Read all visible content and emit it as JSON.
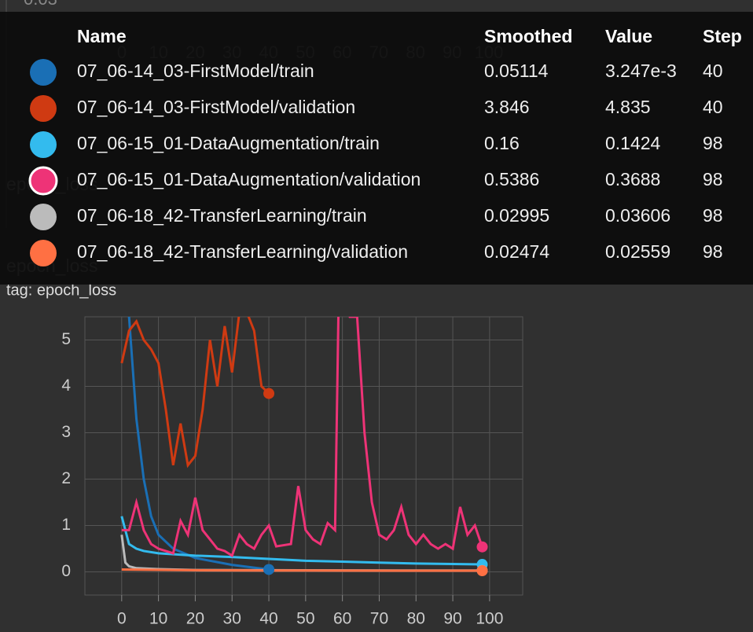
{
  "background": {
    "prev_chart_ytick": "0.03",
    "prev_chart_xticks": [
      0,
      10,
      20,
      30,
      40,
      50,
      60,
      70,
      80,
      90,
      100
    ],
    "card_title": "epoch_loss"
  },
  "card": {
    "title": "epoch_loss",
    "tag": "tag: epoch_loss"
  },
  "chart_data": {
    "type": "line",
    "xlim": [
      -10,
      109
    ],
    "ylim": [
      -0.5,
      5.5
    ],
    "xticks": [
      0,
      10,
      20,
      30,
      40,
      50,
      60,
      70,
      80,
      90,
      100
    ],
    "yticks": [
      0,
      1,
      2,
      3,
      4,
      5
    ],
    "grid": true,
    "series": [
      {
        "name": "07_06-14_03-FirstModel/train",
        "color": "#1a6fb5",
        "x": [
          0,
          2,
          4,
          6,
          8,
          10,
          14,
          20,
          30,
          40
        ],
        "values": [
          6,
          5.5,
          3.3,
          2.0,
          1.2,
          0.8,
          0.5,
          0.3,
          0.15,
          0.05114
        ]
      },
      {
        "name": "07_06-14_03-FirstModel/validation",
        "color": "#cf3a12",
        "x": [
          0,
          2,
          4,
          6,
          8,
          10,
          12,
          14,
          16,
          18,
          20,
          22,
          24,
          26,
          28,
          30,
          32,
          34,
          36,
          38,
          40
        ],
        "values": [
          4.5,
          5.2,
          5.4,
          5,
          4.8,
          4.5,
          3.5,
          2.3,
          3.2,
          2.3,
          2.5,
          3.5,
          5,
          4,
          5.3,
          4.3,
          5.6,
          5.6,
          5.2,
          4,
          3.846
        ]
      },
      {
        "name": "07_06-15_01-DataAugmentation/train",
        "color": "#33bbee",
        "x": [
          0,
          2,
          4,
          6,
          10,
          20,
          30,
          40,
          50,
          60,
          70,
          80,
          90,
          98
        ],
        "values": [
          1.2,
          0.6,
          0.5,
          0.45,
          0.4,
          0.35,
          0.32,
          0.28,
          0.24,
          0.22,
          0.2,
          0.18,
          0.17,
          0.16
        ]
      },
      {
        "name": "07_06-15_01-DataAugmentation/validation",
        "color": "#ee3377",
        "x": [
          0,
          2,
          4,
          6,
          8,
          10,
          14,
          16,
          18,
          20,
          22,
          24,
          26,
          28,
          30,
          32,
          34,
          36,
          38,
          40,
          42,
          46,
          48,
          50,
          52,
          54,
          56,
          58,
          59,
          60,
          62,
          64,
          66,
          68,
          70,
          72,
          74,
          76,
          78,
          80,
          82,
          84,
          86,
          88,
          90,
          92,
          94,
          96,
          98
        ],
        "values": [
          0.9,
          0.9,
          1.5,
          0.9,
          0.6,
          0.5,
          0.4,
          1.1,
          0.8,
          1.6,
          0.9,
          0.7,
          0.5,
          0.45,
          0.35,
          0.8,
          0.6,
          0.5,
          0.8,
          1,
          0.55,
          0.6,
          1.85,
          0.9,
          0.7,
          0.6,
          1.05,
          0.9,
          6,
          6,
          5.5,
          5.5,
          3,
          1.5,
          0.8,
          0.7,
          0.9,
          1.4,
          0.8,
          0.6,
          0.8,
          0.6,
          0.5,
          0.6,
          0.5,
          1.4,
          0.8,
          1.0,
          0.5386
        ]
      },
      {
        "name": "07_06-18_42-TransferLearning/train",
        "color": "#bbbbbb",
        "x": [
          0,
          1,
          2,
          4,
          10,
          20,
          40,
          60,
          80,
          98
        ],
        "values": [
          0.8,
          0.2,
          0.12,
          0.08,
          0.06,
          0.04,
          0.035,
          0.032,
          0.03,
          0.02995
        ]
      },
      {
        "name": "07_06-18_42-TransferLearning/validation",
        "color": "#ff7043",
        "x": [
          0,
          20,
          40,
          60,
          80,
          98
        ],
        "values": [
          0.05,
          0.035,
          0.03,
          0.028,
          0.026,
          0.02474
        ]
      }
    ]
  },
  "tooltip": {
    "headers": [
      "Name",
      "Smoothed",
      "Value",
      "Step"
    ],
    "rows": [
      {
        "smoothed": 0.05114,
        "value": "3.247e-3",
        "step": 40
      },
      {
        "smoothed": 3.846,
        "value": 4.835,
        "step": 40
      },
      {
        "smoothed": 0.16,
        "value": 0.1424,
        "step": 98
      },
      {
        "smoothed": 0.5386,
        "value": 0.3688,
        "step": 98
      },
      {
        "smoothed": 0.02995,
        "value": 0.03606,
        "step": 98
      },
      {
        "smoothed": 0.02474,
        "value": 0.02559,
        "step": 98
      }
    ]
  }
}
